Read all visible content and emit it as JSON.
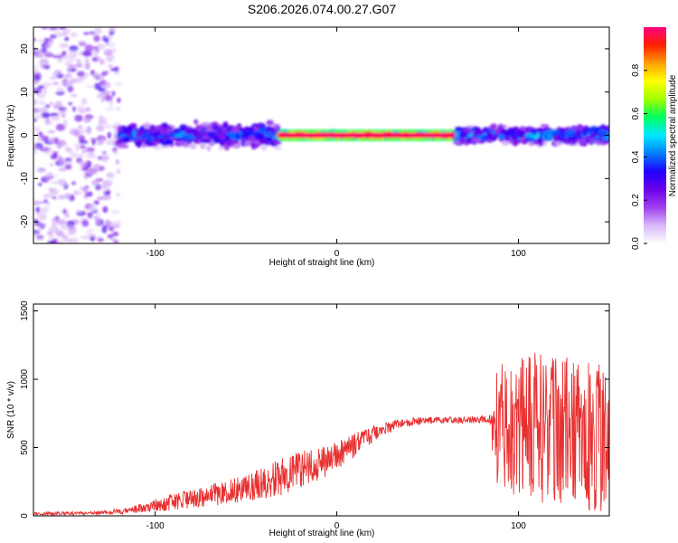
{
  "title": "S206.2026.074.00.27.G07",
  "chart_data": [
    {
      "type": "heatmap",
      "name": "spectrogram",
      "xlabel": "Height of straight line (km)",
      "ylabel": "Frequency (Hz)",
      "xlim": [
        -167,
        150
      ],
      "ylim": [
        -25,
        25
      ],
      "xticks": [
        -100,
        0,
        100
      ],
      "yticks": [
        -20,
        -10,
        0,
        10,
        20
      ],
      "colorbar": {
        "label": "Normalized spectral amplitude",
        "range": [
          0,
          1
        ],
        "ticks": [
          "0.0",
          "0.2",
          "0.4",
          "0.6",
          "0.8"
        ],
        "colors": [
          "#ffffff",
          "#d8b8f8",
          "#a040f0",
          "#6a00e8",
          "#2000ff",
          "#0080ff",
          "#00e8ff",
          "#00ff60",
          "#a0ff00",
          "#ffff00",
          "#ffa000",
          "#ff2000",
          "#ff0080"
        ]
      },
      "bands": [
        {
          "x_start": -167,
          "x_end": -120,
          "freq_center": 0,
          "freq_spread": 25,
          "level": 0.15,
          "description": "scattered noise"
        },
        {
          "x_start": -120,
          "x_end": -32,
          "freq_center": 0,
          "freq_spread": 4,
          "level": 0.35
        },
        {
          "x_start": -32,
          "x_end": 65,
          "freq_center": 0,
          "freq_spread": 1,
          "level": 0.95
        },
        {
          "x_start": 65,
          "x_end": 150,
          "freq_center": 0,
          "freq_spread": 3,
          "level": 0.4
        }
      ]
    },
    {
      "type": "line",
      "name": "snr",
      "xlabel": "Height of straight line (km)",
      "ylabel": "SNR (10 * v/v)",
      "xlim": [
        -167,
        150
      ],
      "ylim": [
        0,
        1550
      ],
      "xticks": [
        -100,
        0,
        100
      ],
      "yticks": [
        0,
        500,
        1000,
        1500
      ],
      "color": "#e83030",
      "envelope": [
        {
          "x": -167,
          "mean": 15,
          "noise": 12
        },
        {
          "x": -130,
          "mean": 20,
          "noise": 15
        },
        {
          "x": -110,
          "mean": 50,
          "noise": 30
        },
        {
          "x": -90,
          "mean": 100,
          "noise": 60
        },
        {
          "x": -70,
          "mean": 150,
          "noise": 80
        },
        {
          "x": -50,
          "mean": 210,
          "noise": 110
        },
        {
          "x": -30,
          "mean": 290,
          "noise": 140
        },
        {
          "x": -10,
          "mean": 380,
          "noise": 130
        },
        {
          "x": 0,
          "mean": 440,
          "noise": 110
        },
        {
          "x": 10,
          "mean": 520,
          "noise": 90
        },
        {
          "x": 20,
          "mean": 600,
          "noise": 60
        },
        {
          "x": 35,
          "mean": 680,
          "noise": 35
        },
        {
          "x": 50,
          "mean": 700,
          "noise": 25
        },
        {
          "x": 70,
          "mean": 700,
          "noise": 25
        },
        {
          "x": 84,
          "mean": 710,
          "noise": 30
        },
        {
          "x": 88,
          "mean": 650,
          "noise": 500
        },
        {
          "x": 110,
          "mean": 650,
          "noise": 550
        },
        {
          "x": 130,
          "mean": 600,
          "noise": 550
        },
        {
          "x": 150,
          "mean": 600,
          "noise": 600
        }
      ]
    }
  ]
}
